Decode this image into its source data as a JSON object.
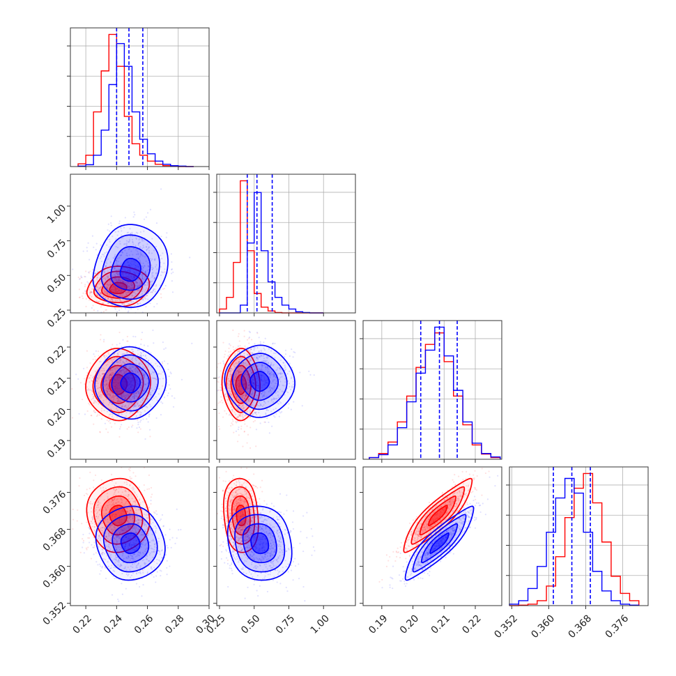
{
  "chart_data": {
    "type": "corner",
    "grid": true,
    "series": [
      {
        "name": "",
        "color": "#0000ff"
      },
      {
        "name": "",
        "color": "#ff0000"
      }
    ],
    "parameters": [
      {
        "range": [
          0.21,
          0.3
        ],
        "ticks": [
          0.22,
          0.24,
          0.26,
          0.28,
          0.3
        ],
        "tick_labels": [
          "0.22",
          "0.24",
          "0.26",
          "0.28",
          "0.30"
        ]
      },
      {
        "range": [
          0.23,
          1.23
        ],
        "ticks": [
          0.25,
          0.5,
          0.75,
          1.0
        ],
        "tick_labels": [
          "0.25",
          "0.50",
          "0.75",
          "1.00"
        ]
      },
      {
        "range": [
          0.184,
          0.2285
        ],
        "ticks": [
          0.19,
          0.2,
          0.21,
          0.22
        ],
        "tick_labels": [
          "0.19",
          "0.20",
          "0.21",
          "0.22"
        ]
      },
      {
        "range": [
          0.3515,
          0.3815
        ],
        "ticks": [
          0.352,
          0.36,
          0.368,
          0.376
        ],
        "tick_labels": [
          "0.352",
          "0.360",
          "0.368",
          "0.376"
        ]
      }
    ],
    "quantiles_blue": [
      [
        0.24,
        0.248,
        0.257
      ],
      [
        0.45,
        0.52,
        0.63
      ],
      [
        0.2025,
        0.2085,
        0.2142
      ],
      [
        0.361,
        0.365,
        0.369
      ]
    ],
    "histograms": [
      {
        "edges": [
          0.215,
          0.22,
          0.225,
          0.23,
          0.235,
          0.24,
          0.245,
          0.25,
          0.255,
          0.26,
          0.265,
          0.27,
          0.275,
          0.28,
          0.285,
          0.29
        ],
        "blue": [
          0.1,
          0.4,
          2.5,
          8.0,
          18.0,
          27.0,
          22.0,
          12.0,
          6.0,
          2.8,
          1.2,
          0.5,
          0.2,
          0.1,
          0.0
        ],
        "red": [
          0.6,
          2.5,
          12.0,
          21.0,
          29.0,
          22.0,
          11.0,
          5.0,
          2.5,
          1.2,
          0.5,
          0.2,
          0.1,
          0.0,
          0.0
        ]
      },
      {
        "edges": [
          0.25,
          0.3,
          0.35,
          0.4,
          0.45,
          0.5,
          0.55,
          0.6,
          0.65,
          0.7,
          0.75,
          0.8,
          0.85,
          0.9,
          0.95,
          1.0
        ],
        "blue": [
          0.0,
          0.0,
          0.0,
          2.0,
          18.0,
          31.0,
          16.0,
          8.0,
          4.0,
          2.0,
          1.0,
          0.3,
          0.1,
          0.0,
          0.0
        ],
        "red": [
          1.0,
          4.0,
          13.0,
          34.0,
          16.0,
          5.0,
          1.5,
          0.5,
          0.1,
          0.0,
          0.0,
          0.0,
          0.0,
          0.0,
          0.0
        ]
      },
      {
        "edges": [
          0.186,
          0.189,
          0.192,
          0.195,
          0.198,
          0.201,
          0.204,
          0.207,
          0.21,
          0.213,
          0.216,
          0.219,
          0.222,
          0.225,
          0.228
        ],
        "blue": [
          0.3,
          0.8,
          2.5,
          5.5,
          10.0,
          15.0,
          19.0,
          23.0,
          18.0,
          12.0,
          6.5,
          2.8,
          1.0,
          0.4
        ],
        "red": [
          0.3,
          1.0,
          3.0,
          6.5,
          11.0,
          16.0,
          20.0,
          22.0,
          17.0,
          11.0,
          6.0,
          2.5,
          0.9,
          0.3
        ]
      },
      {
        "edges": [
          0.3515,
          0.3535,
          0.3555,
          0.3575,
          0.3595,
          0.3615,
          0.3635,
          0.3655,
          0.3675,
          0.3695,
          0.3715,
          0.3735,
          0.3755,
          0.3775,
          0.3795
        ],
        "blue": [
          0.3,
          1.0,
          3.5,
          8.0,
          15.0,
          22.0,
          26.0,
          23.0,
          15.0,
          7.0,
          3.0,
          1.0,
          0.3,
          0.1
        ],
        "red": [
          0.0,
          0.1,
          0.3,
          1.0,
          4.0,
          10.0,
          18.0,
          24.0,
          27.0,
          21.0,
          13.0,
          6.0,
          2.5,
          1.0
        ]
      }
    ],
    "joint": [
      {
        "x": 0,
        "y": 1,
        "blue": {
          "mean": [
            0.249,
            0.53
          ],
          "sd": [
            0.012,
            0.13
          ],
          "rho": 0.05,
          "skew_y": 0.5
        },
        "red": {
          "mean": [
            0.241,
            0.405
          ],
          "sd": [
            0.01,
            0.065
          ],
          "rho": 0.05,
          "skew_y": 0.4
        }
      },
      {
        "x": 0,
        "y": 2,
        "blue": {
          "mean": [
            0.249,
            0.2085
          ],
          "sd": [
            0.011,
            0.0058
          ],
          "rho": 0.0
        },
        "red": {
          "mean": [
            0.241,
            0.208
          ],
          "sd": [
            0.01,
            0.0058
          ],
          "rho": 0.0
        }
      },
      {
        "x": 1,
        "y": 2,
        "blue": {
          "mean": [
            0.54,
            0.209
          ],
          "sd": [
            0.12,
            0.0058
          ],
          "rho": 0.0
        },
        "red": {
          "mean": [
            0.405,
            0.208
          ],
          "sd": [
            0.065,
            0.0058
          ],
          "rho": 0.0
        }
      },
      {
        "x": 0,
        "y": 3,
        "blue": {
          "mean": [
            0.249,
            0.365
          ],
          "sd": [
            0.011,
            0.004
          ],
          "rho": 0.0
        },
        "red": {
          "mean": [
            0.241,
            0.371
          ],
          "sd": [
            0.01,
            0.004
          ],
          "rho": 0.0
        }
      },
      {
        "x": 1,
        "y": 3,
        "blue": {
          "mean": [
            0.54,
            0.365
          ],
          "sd": [
            0.12,
            0.004
          ],
          "rho": -0.1
        },
        "red": {
          "mean": [
            0.405,
            0.371
          ],
          "sd": [
            0.065,
            0.004
          ],
          "rho": -0.1
        }
      },
      {
        "x": 2,
        "y": 3,
        "blue": {
          "mean": [
            0.2085,
            0.365
          ],
          "sd": [
            0.0058,
            0.004
          ],
          "rho": 0.9
        },
        "red": {
          "mean": [
            0.208,
            0.371
          ],
          "sd": [
            0.0058,
            0.004
          ],
          "rho": 0.9
        }
      }
    ]
  }
}
